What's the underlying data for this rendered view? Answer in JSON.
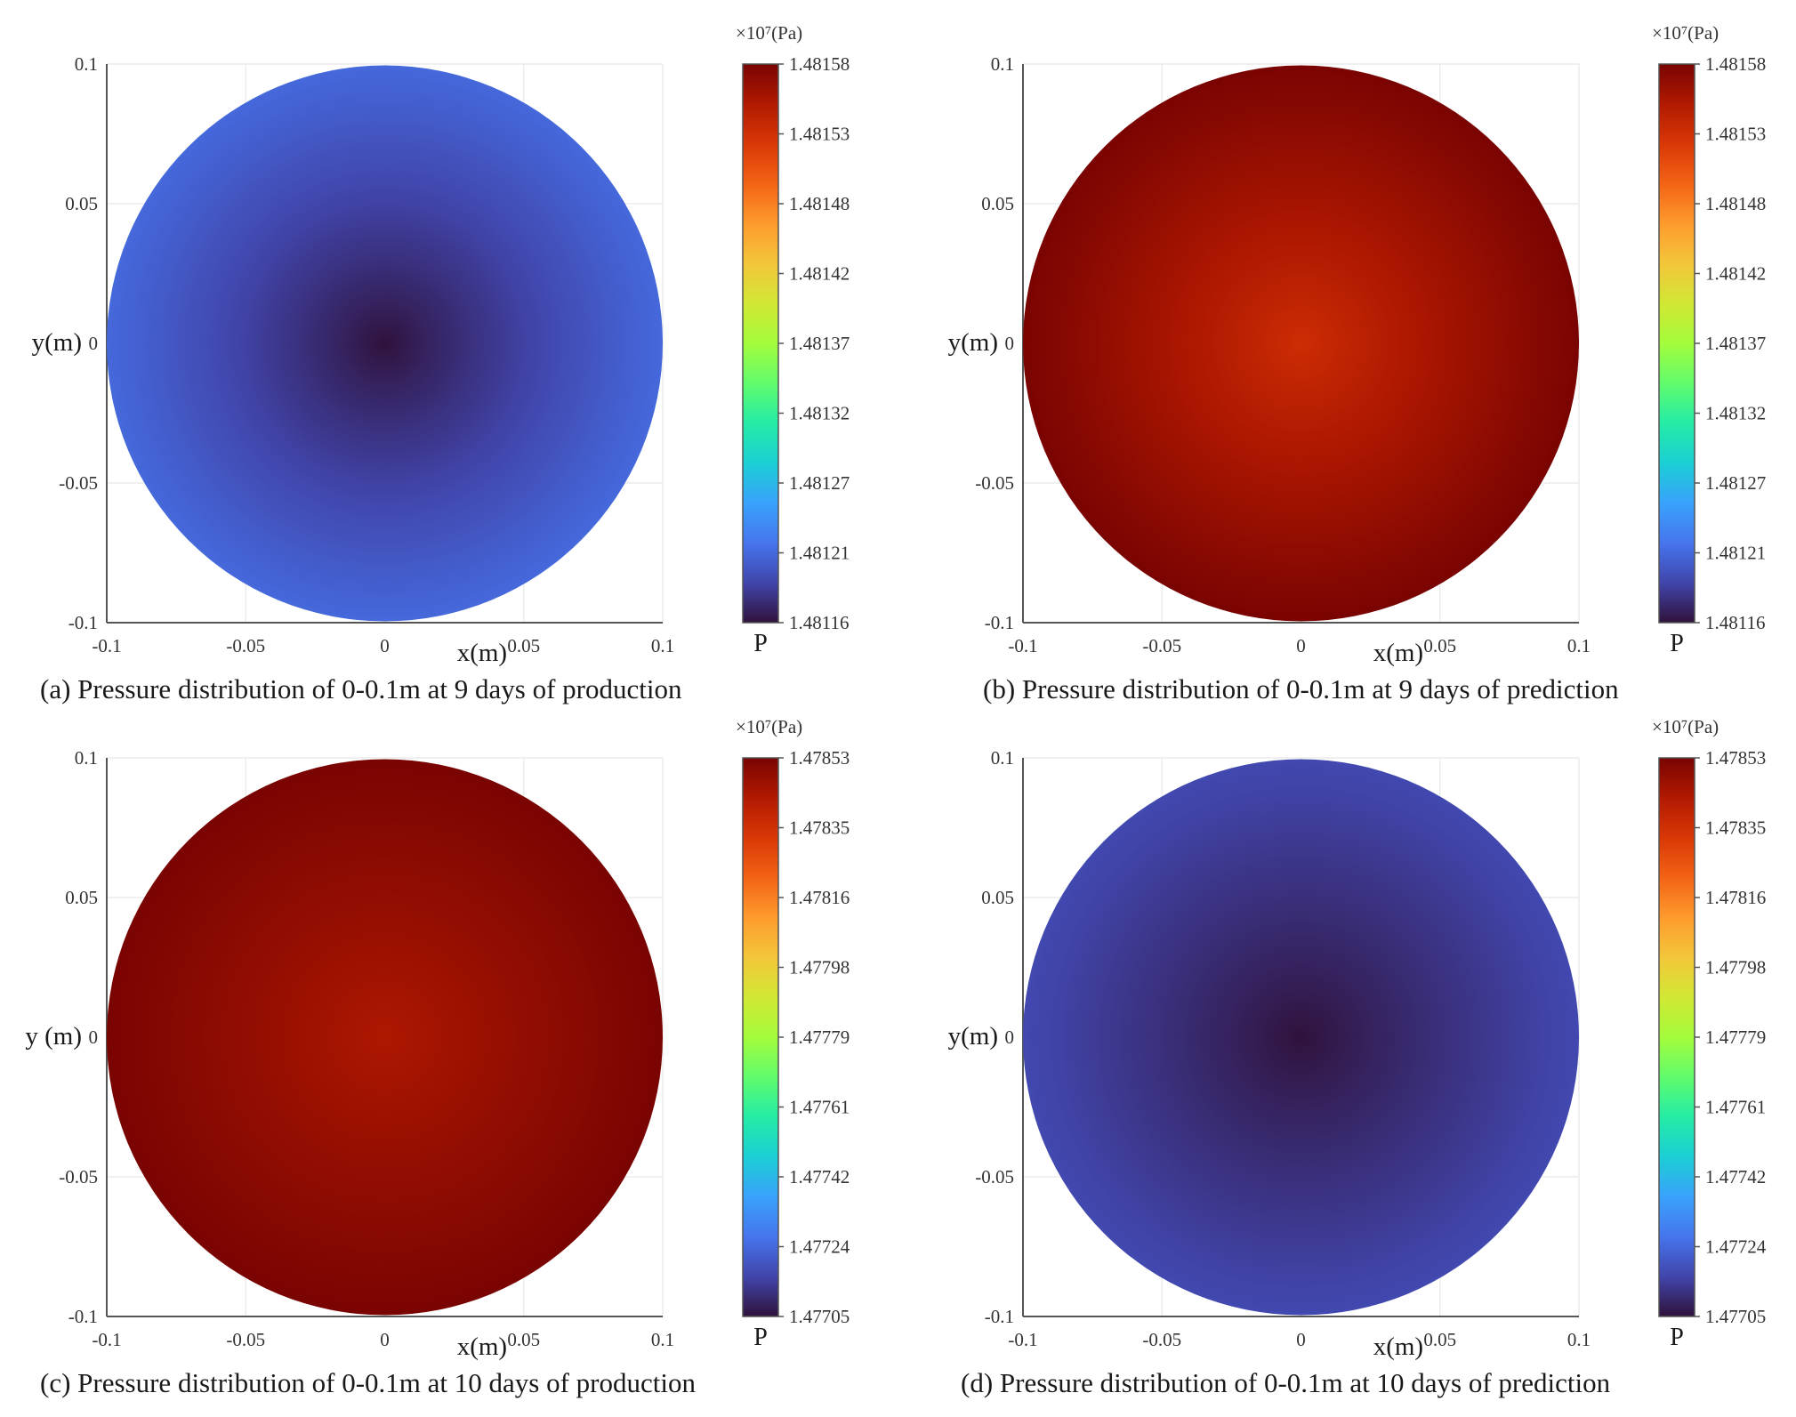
{
  "colormap": [
    "#30123b",
    "#4145ab",
    "#4675ed",
    "#39a2fc",
    "#1bcfd4",
    "#24eca6",
    "#61fc6c",
    "#a4fc3b",
    "#d1e834",
    "#f3c63a",
    "#fe9b2d",
    "#f36315",
    "#d93806",
    "#b11901",
    "#7a0402"
  ],
  "chart_data": [
    {
      "type": "heatmap",
      "caption": "(a) Pressure distribution of 0-0.1m at 9 days of production",
      "xlabel": "x(m)",
      "ylabel": "y(m)",
      "x_ticks": [
        "-0.1",
        "-0.05",
        "0",
        "0.05",
        "0.1"
      ],
      "y_ticks": [
        "0.1",
        "0.05",
        "0",
        "-0.05",
        "-0.1"
      ],
      "xlim": [
        -0.1,
        0.1
      ],
      "ylim": [
        -0.1,
        0.1
      ],
      "colorbar": {
        "variable": "P",
        "unit": "×10⁷(Pa)",
        "min": 1.48116,
        "max": 1.48158,
        "ticks": [
          "1.48158",
          "1.48153",
          "1.48148",
          "1.48142",
          "1.48137",
          "1.48132",
          "1.48127",
          "1.48121",
          "1.48116"
        ]
      },
      "field": {
        "shape": "disk",
        "radius": 0.1,
        "center_value": 1.48116,
        "edge_value": 1.481212
      }
    },
    {
      "type": "heatmap",
      "caption": "(b) Pressure distribution of 0-0.1m at 9 days of prediction",
      "xlabel": "x(m)",
      "ylabel": "y(m)",
      "x_ticks": [
        "-0.1",
        "-0.05",
        "0",
        "0.05",
        "0.1"
      ],
      "y_ticks": [
        "0.1",
        "0.05",
        "0",
        "-0.05",
        "-0.1"
      ],
      "xlim": [
        -0.1,
        0.1
      ],
      "ylim": [
        -0.1,
        0.1
      ],
      "colorbar": {
        "variable": "P",
        "unit": "×10⁷(Pa)",
        "min": 1.48116,
        "max": 1.48158,
        "ticks": [
          "1.48158",
          "1.48153",
          "1.48148",
          "1.48142",
          "1.48137",
          "1.48132",
          "1.48127",
          "1.48121",
          "1.48116"
        ]
      },
      "field": {
        "shape": "disk",
        "radius": 0.1,
        "center_value": 1.48153,
        "edge_value": 1.48158
      }
    },
    {
      "type": "heatmap",
      "caption": "(c) Pressure distribution of 0-0.1m at 10 days of production",
      "xlabel": "x(m)",
      "ylabel": "y (m)",
      "x_ticks": [
        "-0.1",
        "-0.05",
        "0",
        "0.05",
        "0.1"
      ],
      "y_ticks": [
        "0.1",
        "0.05",
        "0",
        "-0.05",
        "-0.1"
      ],
      "xlim": [
        -0.1,
        0.1
      ],
      "ylim": [
        -0.1,
        0.1
      ],
      "colorbar": {
        "variable": "P",
        "unit": "×10⁷(Pa)",
        "min": 1.47705,
        "max": 1.47853,
        "ticks": [
          "1.47853",
          "1.47835",
          "1.47816",
          "1.47798",
          "1.47779",
          "1.47761",
          "1.47742",
          "1.47724",
          "1.47705"
        ]
      },
      "field": {
        "shape": "disk",
        "radius": 0.1,
        "center_value": 1.47843,
        "edge_value": 1.47853
      }
    },
    {
      "type": "heatmap",
      "caption": "(d) Pressure distribution of 0-0.1m at 10 days of prediction",
      "xlabel": "x(m)",
      "ylabel": "y(m)",
      "x_ticks": [
        "-0.1",
        "-0.05",
        "0",
        "0.05",
        "0.1"
      ],
      "y_ticks": [
        "0.1",
        "0.05",
        "0",
        "-0.05",
        "-0.1"
      ],
      "xlim": [
        -0.1,
        0.1
      ],
      "ylim": [
        -0.1,
        0.1
      ],
      "colorbar": {
        "variable": "P",
        "unit": "×10⁷(Pa)",
        "min": 1.47705,
        "max": 1.47853,
        "ticks": [
          "1.47853",
          "1.47835",
          "1.47816",
          "1.47798",
          "1.47779",
          "1.47761",
          "1.47742",
          "1.47724",
          "1.47705"
        ]
      },
      "field": {
        "shape": "disk",
        "radius": 0.1,
        "center_value": 1.47705,
        "edge_value": 1.477162
      }
    }
  ]
}
